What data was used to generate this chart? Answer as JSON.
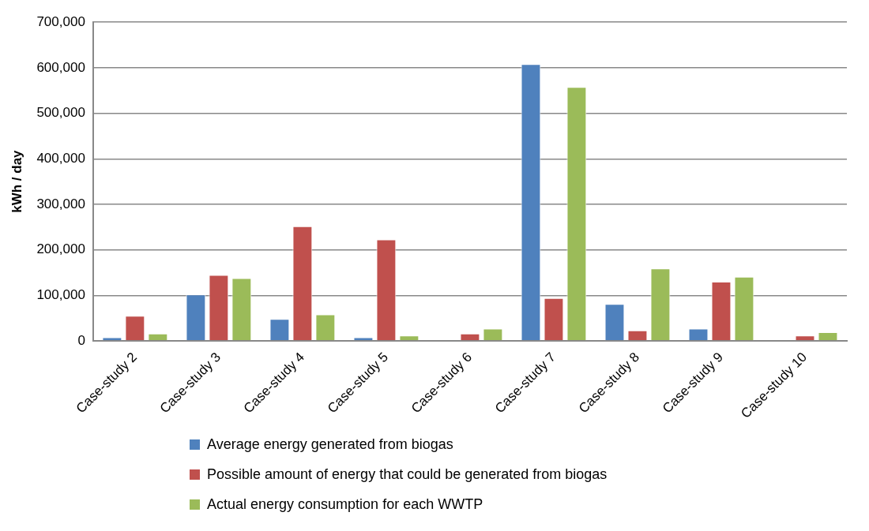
{
  "chart_data": {
    "type": "bar",
    "ylabel": "kWh / day",
    "categories": [
      "Case-study 2",
      "Case-study 3",
      "Case-study 4",
      "Case-study 5",
      "Case-study 6",
      "Case-study 7",
      "Case-study 8",
      "Case-study 9",
      "Case-study 10"
    ],
    "series": [
      {
        "name": "Average energy generated from biogas",
        "color": "#4f81bd",
        "values": [
          8000,
          102000,
          48000,
          8000,
          0,
          608000,
          81000,
          27000,
          0
        ]
      },
      {
        "name": "Possible amount of energy that could be generated from biogas",
        "color": "#c0504d",
        "values": [
          55000,
          145000,
          252000,
          223000,
          16000,
          94000,
          23000,
          130000,
          12000
        ]
      },
      {
        "name": "Actual energy consumption for each WWTP",
        "color": "#9bbb59",
        "values": [
          16000,
          138000,
          58000,
          12000,
          27000,
          558000,
          159000,
          141000,
          19000
        ]
      }
    ],
    "ylim": [
      0,
      700000
    ],
    "yticks": [
      0,
      {
        "value": 100000,
        "label": "100,000"
      },
      {
        "value": 200000,
        "label": "200,000"
      },
      {
        "value": 300000,
        "label": "300,000"
      },
      {
        "value": 400000,
        "label": "400,000"
      },
      {
        "value": 500000,
        "label": "500,000"
      },
      {
        "value": 600000,
        "label": "600,000"
      },
      {
        "value": 700000,
        "label": "700,000"
      }
    ],
    "grid": "y",
    "legend": "bottom"
  }
}
